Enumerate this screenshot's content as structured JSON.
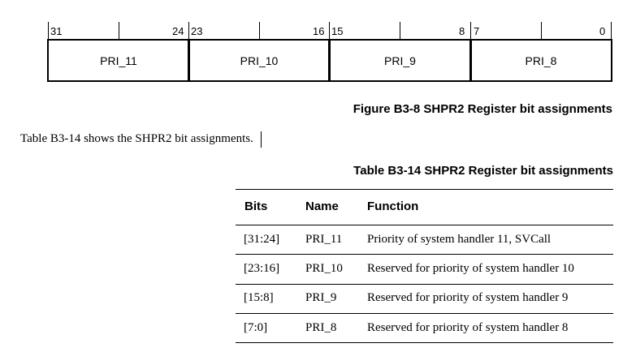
{
  "register": {
    "fields": [
      {
        "name": "PRI_11",
        "high": "31",
        "low": "24"
      },
      {
        "name": "PRI_10",
        "high": "23",
        "low": "16"
      },
      {
        "name": "PRI_9",
        "high": "15",
        "low": "8"
      },
      {
        "name": "PRI_8",
        "high": "7",
        "low": "0"
      }
    ]
  },
  "figure_caption": "Figure B3-8 SHPR2 Register bit assignments",
  "body_text": "Table B3-14 shows the SHPR2 bit assignments.",
  "table": {
    "title": "Table B3-14 SHPR2 Register bit assignments",
    "headers": [
      "Bits",
      "Name",
      "Function"
    ],
    "rows": [
      [
        "[31:24]",
        "PRI_11",
        "Priority of system handler 11, SVCall"
      ],
      [
        "[23:16]",
        "PRI_10",
        "Reserved for priority of system handler 10"
      ],
      [
        "[15:8]",
        "PRI_9",
        "Reserved for priority of system handler 9"
      ],
      [
        "[7:0]",
        "PRI_8",
        "Reserved for priority of system handler 8"
      ]
    ]
  }
}
